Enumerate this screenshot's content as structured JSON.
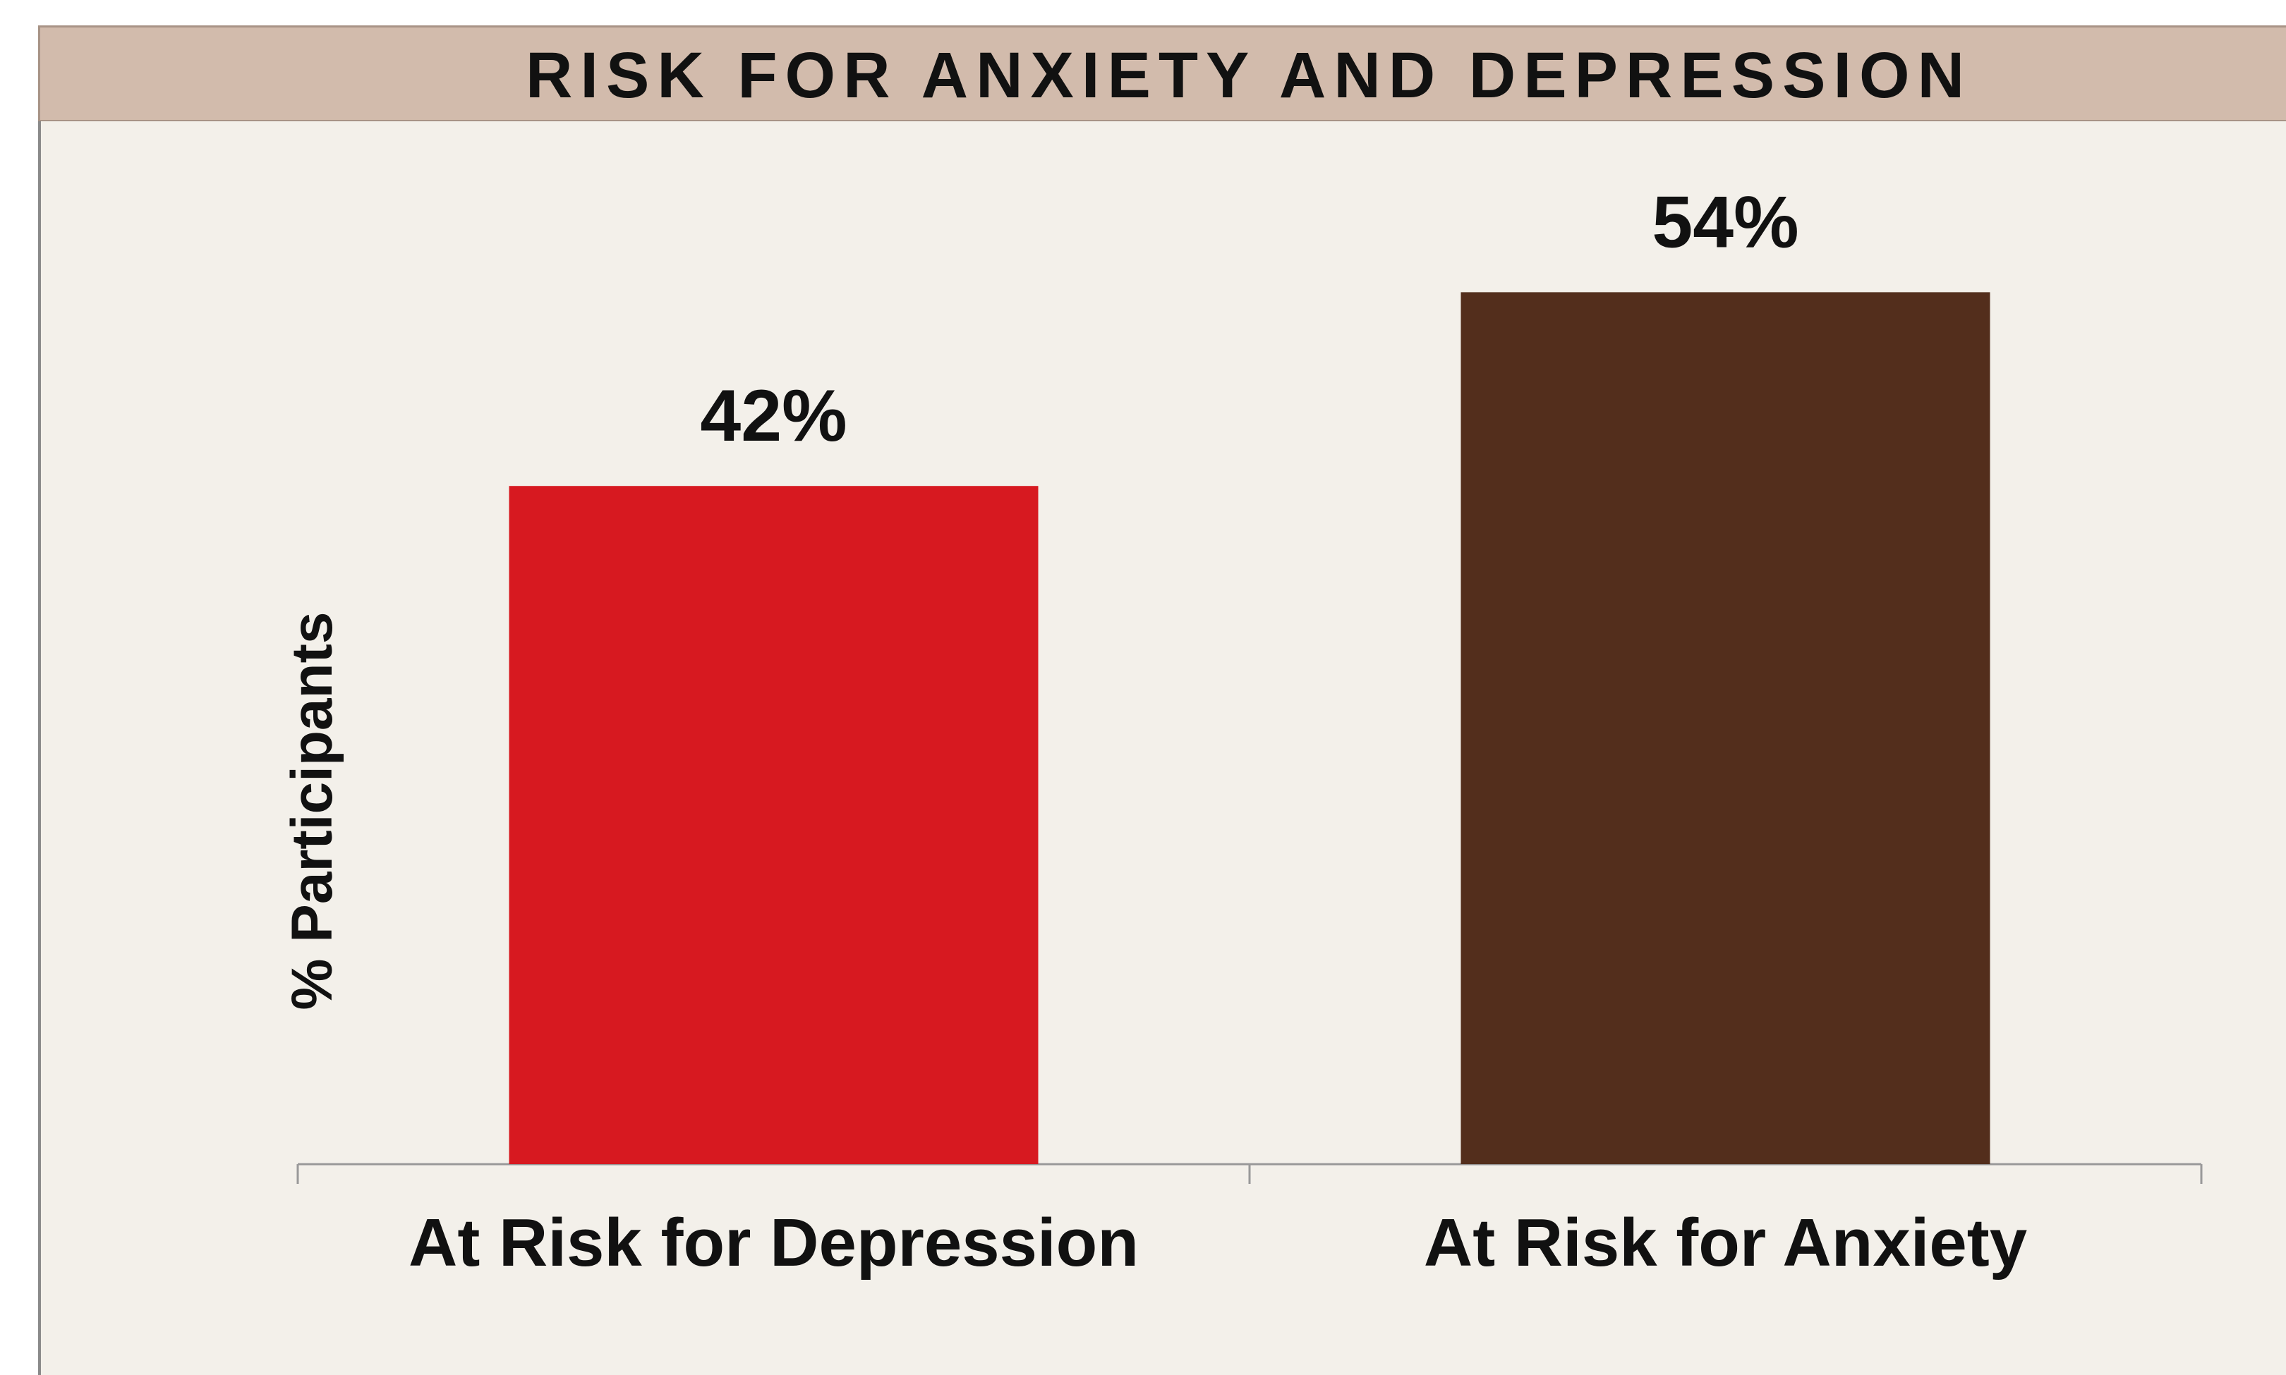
{
  "chart_data": {
    "type": "bar",
    "title": "RISK FOR ANXIETY AND DEPRESSION",
    "ylabel": "% Participants",
    "xlabel": "",
    "categories": [
      "At Risk for Depression",
      "At Risk for Anxiety"
    ],
    "values": [
      42,
      54
    ],
    "data_labels": [
      "42%",
      "54%"
    ],
    "colors": [
      "#d71920",
      "#532e1c"
    ],
    "ylim": [
      0,
      60
    ],
    "grid": false,
    "legend": "none"
  }
}
